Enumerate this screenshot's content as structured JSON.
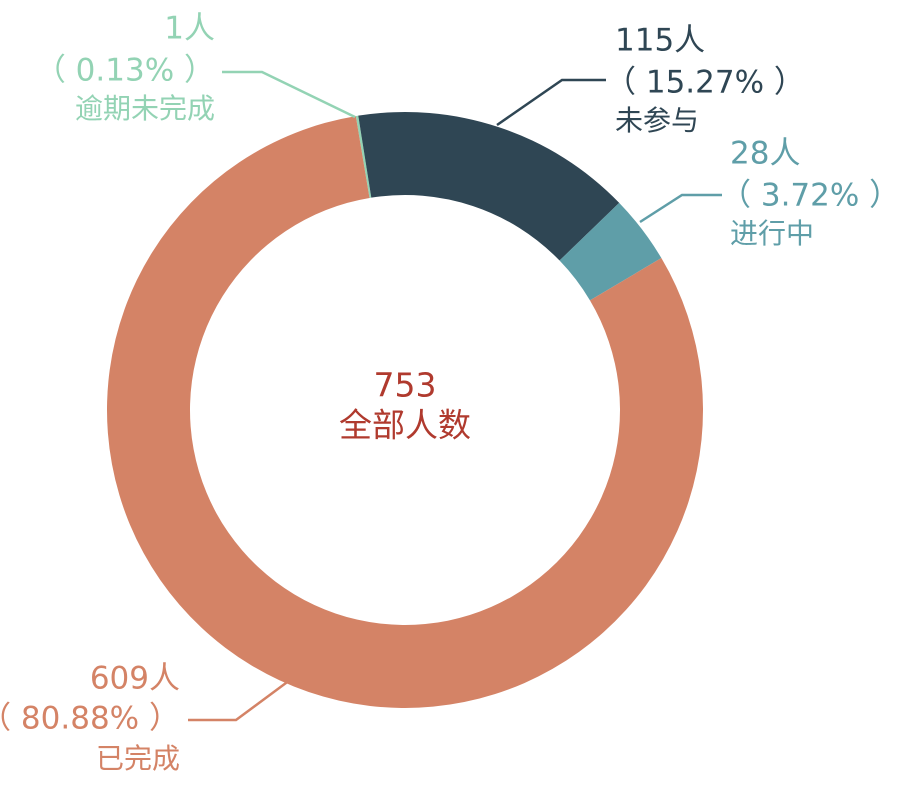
{
  "chart_data": {
    "type": "donut",
    "total": 753,
    "total_label": "全部人数",
    "categories": [
      "逾期未完成",
      "未参与",
      "进行中",
      "已完成"
    ],
    "values": [
      1,
      115,
      28,
      609
    ],
    "value_labels": [
      "1人",
      "115人",
      "28人",
      "609人"
    ],
    "percent_labels": [
      "（ 0.13% ）",
      "（ 15.27% ）",
      "（ 3.72% ）",
      "（ 80.88% ）"
    ],
    "colors": [
      "#93d3b4",
      "#2f4654",
      "#5f9ea8",
      "#d48366"
    ]
  }
}
